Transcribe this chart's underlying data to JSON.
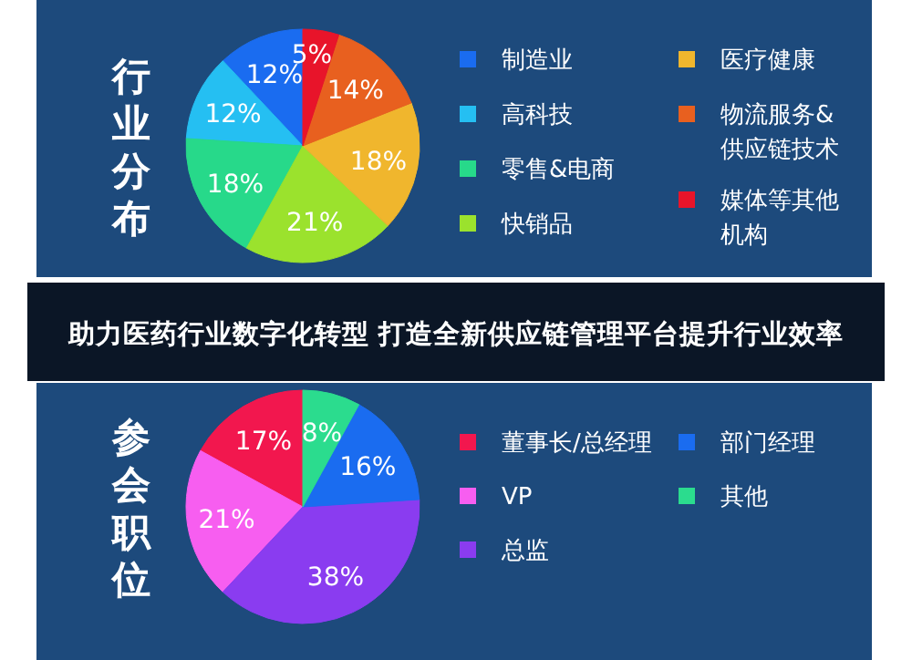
{
  "chart_data": [
    {
      "type": "pie",
      "title": "行业分布",
      "categories": [
        "制造业",
        "高科技",
        "零售&电商",
        "快销品",
        "医疗健康",
        "物流服务&供应链技术",
        "媒体等其他机构"
      ],
      "values": [
        12,
        12,
        18,
        21,
        18,
        14,
        5
      ],
      "value_labels": [
        "12%",
        "12%",
        "18%",
        "21%",
        "18%",
        "14%",
        "5%"
      ],
      "colors": [
        "#1a6cf0",
        "#25bff2",
        "#27d98a",
        "#9be22d",
        "#f0b62d",
        "#e8601f",
        "#e8142a"
      ],
      "legend": "right",
      "annotations": [
        "助力医药行业数字化转型 打造全新供应链管理平台提升行业效率"
      ]
    },
    {
      "type": "pie",
      "title": "参会职位",
      "categories": [
        "董事长/总经理",
        "VP",
        "总监",
        "部门经理",
        "其他"
      ],
      "values": [
        17,
        21,
        38,
        16,
        8
      ],
      "value_labels": [
        "17%",
        "21%",
        "38%",
        "16%",
        "8%"
      ],
      "colors": [
        "#f2174e",
        "#f75ef0",
        "#8a3cf0",
        "#1a6cf0",
        "#2bdc8e"
      ],
      "legend": "right"
    }
  ]
}
